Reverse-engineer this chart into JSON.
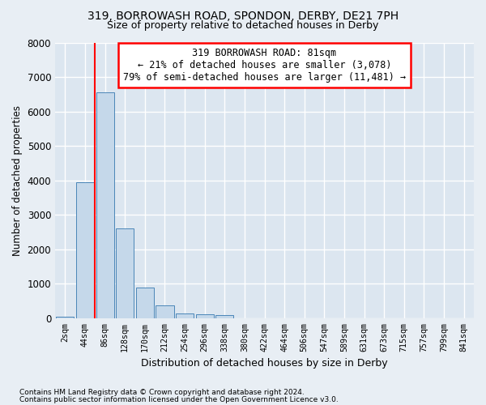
{
  "title": "319, BORROWASH ROAD, SPONDON, DERBY, DE21 7PH",
  "subtitle": "Size of property relative to detached houses in Derby",
  "xlabel": "Distribution of detached houses by size in Derby",
  "ylabel": "Number of detached properties",
  "footnote1": "Contains HM Land Registry data © Crown copyright and database right 2024.",
  "footnote2": "Contains public sector information licensed under the Open Government Licence v3.0.",
  "bin_labels": [
    "2sqm",
    "44sqm",
    "86sqm",
    "128sqm",
    "170sqm",
    "212sqm",
    "254sqm",
    "296sqm",
    "338sqm",
    "380sqm",
    "422sqm",
    "464sqm",
    "506sqm",
    "547sqm",
    "589sqm",
    "631sqm",
    "673sqm",
    "715sqm",
    "757sqm",
    "799sqm",
    "841sqm"
  ],
  "bar_values": [
    50,
    3950,
    6550,
    2600,
    900,
    380,
    130,
    120,
    80,
    0,
    0,
    0,
    0,
    0,
    0,
    0,
    0,
    0,
    0,
    0,
    0
  ],
  "bar_color": "#c5d8ea",
  "bar_edge_color": "#4a86b8",
  "vline_x": 1.5,
  "vline_color": "red",
  "annotation_title": "319 BORROWASH ROAD: 81sqm",
  "annotation_line2": "← 21% of detached houses are smaller (3,078)",
  "annotation_line3": "79% of semi-detached houses are larger (11,481) →",
  "annotation_box_color": "#ffffff",
  "annotation_box_edge": "red",
  "ylim": [
    0,
    8000
  ],
  "yticks": [
    0,
    1000,
    2000,
    3000,
    4000,
    5000,
    6000,
    7000,
    8000
  ],
  "bg_color": "#e8eef4",
  "plot_bg_color": "#dce6f0",
  "grid_color": "#ffffff",
  "title_fontsize": 10,
  "subtitle_fontsize": 9
}
